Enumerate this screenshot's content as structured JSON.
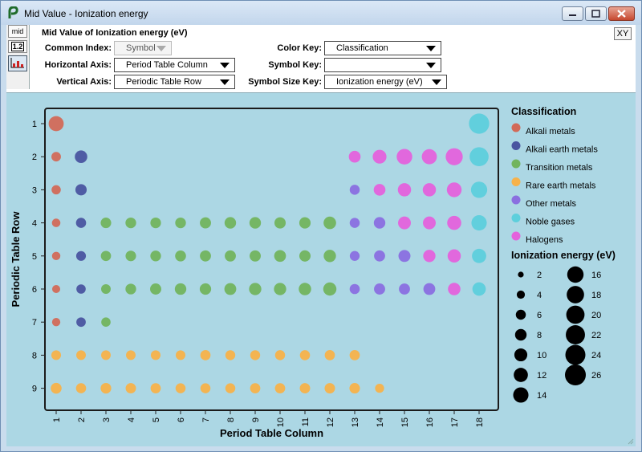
{
  "window": {
    "title": "Mid Value - Ionization energy"
  },
  "toolbar": {
    "mid_label": "mid",
    "value_label": "1.2",
    "xy_label": "XY"
  },
  "controls": {
    "heading": "Mid Value of Ionization energy (eV)",
    "common_index": {
      "label": "Common Index:",
      "value": "Symbol"
    },
    "horizontal_axis": {
      "label": "Horizontal Axis:",
      "value": "Period Table Column"
    },
    "vertical_axis": {
      "label": "Vertical Axis:",
      "value": "Periodic Table Row"
    },
    "color_key": {
      "label": "Color Key:",
      "value": "Classification"
    },
    "symbol_key": {
      "label": "Symbol Key:",
      "value": ""
    },
    "symbol_size_key": {
      "label": "Symbol Size Key:",
      "value": "Ionization energy (eV)"
    }
  },
  "chart_data": {
    "type": "scatter",
    "xlabel": "Period Table Column",
    "ylabel": "Periodic Table Row",
    "x_ticks": [
      1,
      2,
      3,
      4,
      5,
      6,
      7,
      8,
      9,
      10,
      11,
      12,
      13,
      14,
      15,
      16,
      17,
      18
    ],
    "y_ticks": [
      1,
      2,
      3,
      4,
      5,
      6,
      7,
      8,
      9
    ],
    "y_inverted": true,
    "grid": false,
    "legend_position": "right",
    "color_legend": {
      "title": "Classification",
      "entries": [
        {
          "name": "Alkali metals",
          "color": "#d26a58"
        },
        {
          "name": "Alkali earth metals",
          "color": "#4a55a0"
        },
        {
          "name": "Transition metals",
          "color": "#72b45e"
        },
        {
          "name": "Rare earth metals",
          "color": "#f7b24a"
        },
        {
          "name": "Other metals",
          "color": "#8a6fe0"
        },
        {
          "name": "Noble gases",
          "color": "#5dcfdc"
        },
        {
          "name": "Halogens",
          "color": "#e462dc"
        }
      ]
    },
    "size_legend": {
      "title": "Ionization energy (eV)",
      "values": [
        2,
        4,
        6,
        8,
        10,
        12,
        14,
        16,
        18,
        20,
        22,
        24,
        26
      ]
    },
    "points": [
      {
        "x": 1,
        "y": 1,
        "c": "Alkali metals",
        "v": 13.6
      },
      {
        "x": 18,
        "y": 1,
        "c": "Noble gases",
        "v": 24.6
      },
      {
        "x": 1,
        "y": 2,
        "c": "Alkali metals",
        "v": 5.4
      },
      {
        "x": 2,
        "y": 2,
        "c": "Alkali earth metals",
        "v": 9.3
      },
      {
        "x": 13,
        "y": 2,
        "c": "Halogens",
        "v": 8.3
      },
      {
        "x": 14,
        "y": 2,
        "c": "Halogens",
        "v": 11.3
      },
      {
        "x": 15,
        "y": 2,
        "c": "Halogens",
        "v": 14.5
      },
      {
        "x": 16,
        "y": 2,
        "c": "Halogens",
        "v": 13.6
      },
      {
        "x": 17,
        "y": 2,
        "c": "Halogens",
        "v": 17.4
      },
      {
        "x": 18,
        "y": 2,
        "c": "Noble gases",
        "v": 21.6
      },
      {
        "x": 1,
        "y": 3,
        "c": "Alkali metals",
        "v": 5.1
      },
      {
        "x": 2,
        "y": 3,
        "c": "Alkali earth metals",
        "v": 7.6
      },
      {
        "x": 13,
        "y": 3,
        "c": "Other metals",
        "v": 6.0
      },
      {
        "x": 14,
        "y": 3,
        "c": "Halogens",
        "v": 8.2
      },
      {
        "x": 15,
        "y": 3,
        "c": "Halogens",
        "v": 10.5
      },
      {
        "x": 16,
        "y": 3,
        "c": "Halogens",
        "v": 10.4
      },
      {
        "x": 17,
        "y": 3,
        "c": "Halogens",
        "v": 13.0
      },
      {
        "x": 18,
        "y": 3,
        "c": "Noble gases",
        "v": 15.8
      },
      {
        "x": 1,
        "y": 4,
        "c": "Alkali metals",
        "v": 4.3
      },
      {
        "x": 2,
        "y": 4,
        "c": "Alkali earth metals",
        "v": 6.1
      },
      {
        "x": 3,
        "y": 4,
        "c": "Transition metals",
        "v": 6.6
      },
      {
        "x": 4,
        "y": 4,
        "c": "Transition metals",
        "v": 6.8
      },
      {
        "x": 5,
        "y": 4,
        "c": "Transition metals",
        "v": 6.7
      },
      {
        "x": 6,
        "y": 4,
        "c": "Transition metals",
        "v": 6.8
      },
      {
        "x": 7,
        "y": 4,
        "c": "Transition metals",
        "v": 7.4
      },
      {
        "x": 8,
        "y": 4,
        "c": "Transition metals",
        "v": 7.9
      },
      {
        "x": 9,
        "y": 4,
        "c": "Transition metals",
        "v": 7.9
      },
      {
        "x": 10,
        "y": 4,
        "c": "Transition metals",
        "v": 7.6
      },
      {
        "x": 11,
        "y": 4,
        "c": "Transition metals",
        "v": 7.7
      },
      {
        "x": 12,
        "y": 4,
        "c": "Transition metals",
        "v": 9.4
      },
      {
        "x": 13,
        "y": 4,
        "c": "Other metals",
        "v": 6.0
      },
      {
        "x": 14,
        "y": 4,
        "c": "Other metals",
        "v": 7.9
      },
      {
        "x": 15,
        "y": 4,
        "c": "Halogens",
        "v": 9.8
      },
      {
        "x": 16,
        "y": 4,
        "c": "Halogens",
        "v": 9.8
      },
      {
        "x": 17,
        "y": 4,
        "c": "Halogens",
        "v": 11.8
      },
      {
        "x": 18,
        "y": 4,
        "c": "Noble gases",
        "v": 14.0
      },
      {
        "x": 1,
        "y": 5,
        "c": "Alkali metals",
        "v": 4.2
      },
      {
        "x": 2,
        "y": 5,
        "c": "Alkali earth metals",
        "v": 5.7
      },
      {
        "x": 3,
        "y": 5,
        "c": "Transition metals",
        "v": 6.2
      },
      {
        "x": 4,
        "y": 5,
        "c": "Transition metals",
        "v": 6.6
      },
      {
        "x": 5,
        "y": 5,
        "c": "Transition metals",
        "v": 6.8
      },
      {
        "x": 6,
        "y": 5,
        "c": "Transition metals",
        "v": 7.1
      },
      {
        "x": 7,
        "y": 5,
        "c": "Transition metals",
        "v": 7.3
      },
      {
        "x": 8,
        "y": 5,
        "c": "Transition metals",
        "v": 7.4
      },
      {
        "x": 9,
        "y": 5,
        "c": "Transition metals",
        "v": 7.5
      },
      {
        "x": 10,
        "y": 5,
        "c": "Transition metals",
        "v": 8.3
      },
      {
        "x": 11,
        "y": 5,
        "c": "Transition metals",
        "v": 7.6
      },
      {
        "x": 12,
        "y": 5,
        "c": "Transition metals",
        "v": 9.0
      },
      {
        "x": 13,
        "y": 5,
        "c": "Other metals",
        "v": 5.8
      },
      {
        "x": 14,
        "y": 5,
        "c": "Other metals",
        "v": 7.3
      },
      {
        "x": 15,
        "y": 5,
        "c": "Other metals",
        "v": 8.6
      },
      {
        "x": 16,
        "y": 5,
        "c": "Halogens",
        "v": 9.0
      },
      {
        "x": 17,
        "y": 5,
        "c": "Halogens",
        "v": 10.5
      },
      {
        "x": 18,
        "y": 5,
        "c": "Noble gases",
        "v": 12.1
      },
      {
        "x": 1,
        "y": 6,
        "c": "Alkali metals",
        "v": 3.9
      },
      {
        "x": 2,
        "y": 6,
        "c": "Alkali earth metals",
        "v": 5.2
      },
      {
        "x": 3,
        "y": 6,
        "c": "Transition metals",
        "v": 5.5
      },
      {
        "x": 4,
        "y": 6,
        "c": "Transition metals",
        "v": 6.8
      },
      {
        "x": 5,
        "y": 6,
        "c": "Transition metals",
        "v": 7.5
      },
      {
        "x": 6,
        "y": 6,
        "c": "Transition metals",
        "v": 7.9
      },
      {
        "x": 7,
        "y": 6,
        "c": "Transition metals",
        "v": 7.8
      },
      {
        "x": 8,
        "y": 6,
        "c": "Transition metals",
        "v": 8.4
      },
      {
        "x": 9,
        "y": 6,
        "c": "Transition metals",
        "v": 9.0
      },
      {
        "x": 10,
        "y": 6,
        "c": "Transition metals",
        "v": 9.0
      },
      {
        "x": 11,
        "y": 6,
        "c": "Transition metals",
        "v": 9.2
      },
      {
        "x": 12,
        "y": 6,
        "c": "Transition metals",
        "v": 10.4
      },
      {
        "x": 13,
        "y": 6,
        "c": "Other metals",
        "v": 6.1
      },
      {
        "x": 14,
        "y": 6,
        "c": "Other metals",
        "v": 7.4
      },
      {
        "x": 15,
        "y": 6,
        "c": "Other metals",
        "v": 7.3
      },
      {
        "x": 16,
        "y": 6,
        "c": "Other metals",
        "v": 8.4
      },
      {
        "x": 17,
        "y": 6,
        "c": "Halogens",
        "v": 9.3
      },
      {
        "x": 18,
        "y": 6,
        "c": "Noble gases",
        "v": 10.7
      },
      {
        "x": 1,
        "y": 7,
        "c": "Alkali metals",
        "v": 4.1
      },
      {
        "x": 2,
        "y": 7,
        "c": "Alkali earth metals",
        "v": 5.3
      },
      {
        "x": 3,
        "y": 7,
        "c": "Transition metals",
        "v": 5.2
      },
      {
        "x": 1,
        "y": 8,
        "c": "Rare earth metals",
        "v": 5.6
      },
      {
        "x": 2,
        "y": 8,
        "c": "Rare earth metals",
        "v": 5.5
      },
      {
        "x": 3,
        "y": 8,
        "c": "Rare earth metals",
        "v": 5.5
      },
      {
        "x": 4,
        "y": 8,
        "c": "Rare earth metals",
        "v": 5.5
      },
      {
        "x": 5,
        "y": 8,
        "c": "Rare earth metals",
        "v": 5.6
      },
      {
        "x": 6,
        "y": 8,
        "c": "Rare earth metals",
        "v": 5.6
      },
      {
        "x": 7,
        "y": 8,
        "c": "Rare earth metals",
        "v": 6.2
      },
      {
        "x": 8,
        "y": 8,
        "c": "Rare earth metals",
        "v": 5.9
      },
      {
        "x": 9,
        "y": 8,
        "c": "Rare earth metals",
        "v": 5.9
      },
      {
        "x": 10,
        "y": 8,
        "c": "Rare earth metals",
        "v": 6.0
      },
      {
        "x": 11,
        "y": 8,
        "c": "Rare earth metals",
        "v": 6.1
      },
      {
        "x": 12,
        "y": 8,
        "c": "Rare earth metals",
        "v": 6.2
      },
      {
        "x": 13,
        "y": 8,
        "c": "Rare earth metals",
        "v": 6.3
      },
      {
        "x": 1,
        "y": 9,
        "c": "Rare earth metals",
        "v": 7.0
      },
      {
        "x": 2,
        "y": 9,
        "c": "Rare earth metals",
        "v": 6.1
      },
      {
        "x": 3,
        "y": 9,
        "c": "Rare earth metals",
        "v": 6.7
      },
      {
        "x": 4,
        "y": 9,
        "c": "Rare earth metals",
        "v": 6.4
      },
      {
        "x": 5,
        "y": 9,
        "c": "Rare earth metals",
        "v": 6.2
      },
      {
        "x": 6,
        "y": 9,
        "c": "Rare earth metals",
        "v": 6.0
      },
      {
        "x": 7,
        "y": 9,
        "c": "Rare earth metals",
        "v": 6.0
      },
      {
        "x": 8,
        "y": 9,
        "c": "Rare earth metals",
        "v": 6.0
      },
      {
        "x": 9,
        "y": 9,
        "c": "Rare earth metals",
        "v": 6.2
      },
      {
        "x": 10,
        "y": 9,
        "c": "Rare earth metals",
        "v": 6.3
      },
      {
        "x": 11,
        "y": 9,
        "c": "Rare earth metals",
        "v": 6.4
      },
      {
        "x": 12,
        "y": 9,
        "c": "Rare earth metals",
        "v": 6.5
      },
      {
        "x": 13,
        "y": 9,
        "c": "Rare earth metals",
        "v": 6.6
      },
      {
        "x": 14,
        "y": 9,
        "c": "Rare earth metals",
        "v": 4.9
      }
    ]
  }
}
